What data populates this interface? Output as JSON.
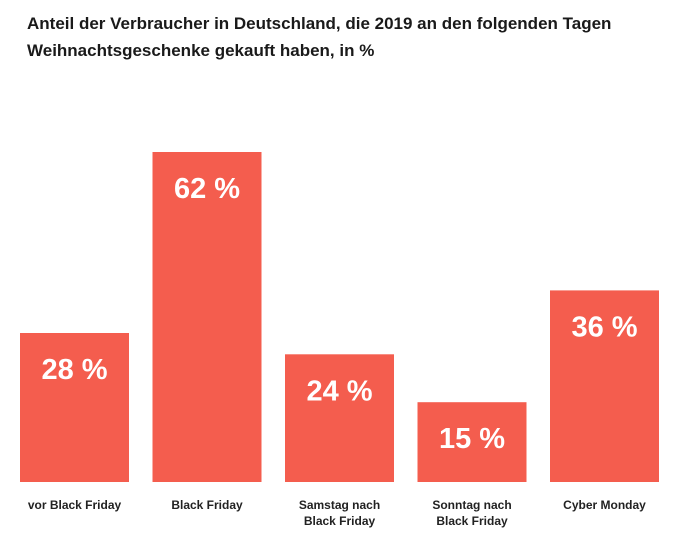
{
  "chart_data": {
    "type": "bar",
    "title_lines": [
      "Anteil der Verbraucher in Deutschland, die 2019 an den folgenden Tagen",
      "Weihnachtsgeschenke gekauft haben, in %"
    ],
    "categories": [
      [
        "vor Black Friday"
      ],
      [
        "Black Friday"
      ],
      [
        "Samstag nach",
        "Black Friday"
      ],
      [
        "Sonntag nach",
        "Black Friday"
      ],
      [
        "Cyber Monday"
      ]
    ],
    "values": [
      28,
      62,
      24,
      15,
      36
    ],
    "value_labels": [
      "28 %",
      "62 %",
      "24 %",
      "15 %",
      "36 %"
    ],
    "ylim": [
      0,
      62
    ],
    "bar_color": "#f45d4e",
    "grid": false,
    "legend": false
  }
}
